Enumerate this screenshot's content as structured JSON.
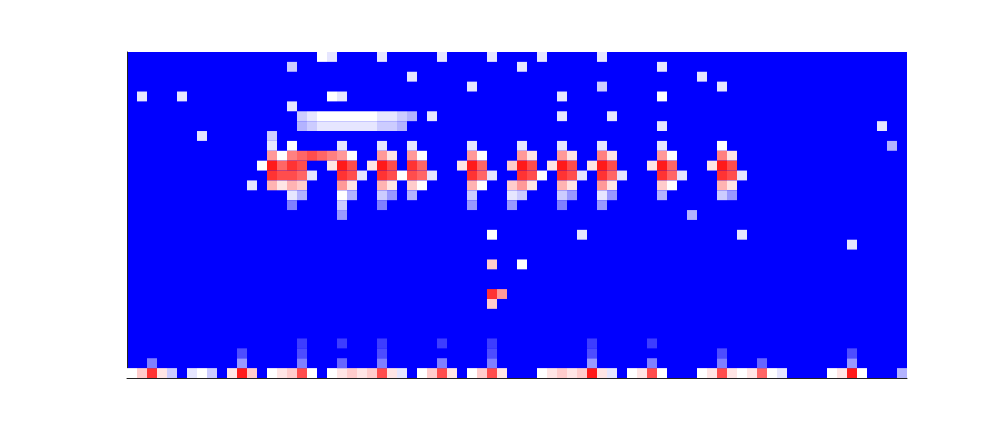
{
  "chart_data": {
    "type": "heatmap",
    "xlim": [
      0,
      78
    ],
    "ylim": [
      0,
      33
    ],
    "tick_labels": false,
    "grid": false,
    "color_range": [
      0,
      1
    ],
    "cells": [
      [
        0,
        0,
        0.5
      ],
      [
        1,
        0,
        0.6
      ],
      [
        2,
        0,
        0.9
      ],
      [
        3,
        0,
        0.55
      ],
      [
        4,
        0,
        0.4
      ],
      [
        6,
        0,
        0.45
      ],
      [
        7,
        0,
        0.5
      ],
      [
        8,
        0,
        0.4
      ],
      [
        10,
        0,
        0.55
      ],
      [
        11,
        0,
        0.95
      ],
      [
        12,
        0,
        0.6
      ],
      [
        14,
        0,
        0.5
      ],
      [
        15,
        0,
        0.55
      ],
      [
        16,
        0,
        0.6
      ],
      [
        17,
        0,
        0.85
      ],
      [
        18,
        0,
        0.5
      ],
      [
        20,
        0,
        0.5
      ],
      [
        21,
        0,
        0.55
      ],
      [
        22,
        0,
        0.6
      ],
      [
        23,
        0,
        0.55
      ],
      [
        24,
        0,
        0.6
      ],
      [
        25,
        0,
        0.85
      ],
      [
        26,
        0,
        0.55
      ],
      [
        27,
        0,
        0.45
      ],
      [
        29,
        0,
        0.5
      ],
      [
        30,
        0,
        0.6
      ],
      [
        31,
        0,
        0.85
      ],
      [
        32,
        0,
        0.55
      ],
      [
        34,
        0,
        0.5
      ],
      [
        35,
        0,
        0.6
      ],
      [
        36,
        0,
        0.85
      ],
      [
        37,
        0,
        0.55
      ],
      [
        41,
        0,
        0.5
      ],
      [
        42,
        0,
        0.55
      ],
      [
        43,
        0,
        0.6
      ],
      [
        44,
        0,
        0.55
      ],
      [
        45,
        0,
        0.6
      ],
      [
        46,
        0,
        0.95
      ],
      [
        47,
        0,
        0.55
      ],
      [
        48,
        0,
        0.45
      ],
      [
        50,
        0,
        0.5
      ],
      [
        51,
        0,
        0.55
      ],
      [
        52,
        0,
        0.85
      ],
      [
        53,
        0,
        0.5
      ],
      [
        57,
        0,
        0.5
      ],
      [
        58,
        0,
        0.55
      ],
      [
        59,
        0,
        0.85
      ],
      [
        60,
        0,
        0.55
      ],
      [
        61,
        0,
        0.5
      ],
      [
        62,
        0,
        0.55
      ],
      [
        63,
        0,
        0.8
      ],
      [
        64,
        0,
        0.5
      ],
      [
        65,
        0,
        0.45
      ],
      [
        70,
        0,
        0.5
      ],
      [
        71,
        0,
        0.55
      ],
      [
        72,
        0,
        0.95
      ],
      [
        73,
        0,
        0.5
      ],
      [
        77,
        0,
        0.35
      ],
      [
        2,
        1,
        0.25
      ],
      [
        11,
        1,
        0.3
      ],
      [
        17,
        1,
        0.25
      ],
      [
        21,
        1,
        0.2
      ],
      [
        25,
        1,
        0.25
      ],
      [
        31,
        1,
        0.25
      ],
      [
        36,
        1,
        0.25
      ],
      [
        46,
        1,
        0.3
      ],
      [
        52,
        1,
        0.25
      ],
      [
        59,
        1,
        0.25
      ],
      [
        63,
        1,
        0.2
      ],
      [
        72,
        1,
        0.3
      ],
      [
        11,
        2,
        0.15
      ],
      [
        17,
        2,
        0.15
      ],
      [
        25,
        2,
        0.15
      ],
      [
        36,
        2,
        0.15
      ],
      [
        46,
        2,
        0.15
      ],
      [
        59,
        2,
        0.15
      ],
      [
        72,
        2,
        0.15
      ],
      [
        17,
        3,
        0.12
      ],
      [
        21,
        3,
        0.12
      ],
      [
        25,
        3,
        0.12
      ],
      [
        31,
        3,
        0.12
      ],
      [
        36,
        3,
        0.12
      ],
      [
        46,
        3,
        0.12
      ],
      [
        52,
        3,
        0.12
      ],
      [
        36,
        7,
        0.6
      ],
      [
        36,
        8,
        0.9
      ],
      [
        37,
        8,
        0.7
      ],
      [
        36,
        11,
        0.6
      ],
      [
        39,
        11,
        0.5
      ],
      [
        36,
        14,
        0.5
      ],
      [
        45,
        14,
        0.45
      ],
      [
        61,
        14,
        0.45
      ],
      [
        72,
        13,
        0.45
      ],
      [
        56,
        16,
        0.35
      ],
      [
        75,
        25,
        0.45
      ],
      [
        76,
        23,
        0.35
      ],
      [
        12,
        19,
        0.45
      ],
      [
        13,
        21,
        0.5
      ],
      [
        7,
        24,
        0.45
      ],
      [
        14,
        23,
        0.45
      ],
      [
        14,
        22,
        0.7
      ],
      [
        15,
        22,
        0.5
      ],
      [
        14,
        21,
        0.95
      ],
      [
        15,
        21,
        0.8
      ],
      [
        14,
        20,
        0.9
      ],
      [
        15,
        20,
        0.85
      ],
      [
        14,
        19,
        0.65
      ],
      [
        15,
        19,
        0.55
      ],
      [
        14,
        24,
        0.4
      ],
      [
        16,
        23,
        0.5
      ],
      [
        16,
        22,
        0.75
      ],
      [
        17,
        22,
        0.8
      ],
      [
        16,
        21,
        0.9
      ],
      [
        17,
        21,
        0.85
      ],
      [
        16,
        20,
        0.85
      ],
      [
        17,
        20,
        0.8
      ],
      [
        18,
        20,
        0.45
      ],
      [
        16,
        19,
        0.65
      ],
      [
        17,
        19,
        0.6
      ],
      [
        16,
        18,
        0.45
      ],
      [
        17,
        18,
        0.35
      ],
      [
        16,
        17,
        0.25
      ],
      [
        18,
        22,
        0.85
      ],
      [
        19,
        22,
        0.8
      ],
      [
        20,
        22,
        0.75
      ],
      [
        21,
        23,
        0.45
      ],
      [
        21,
        22,
        0.7
      ],
      [
        22,
        22,
        0.5
      ],
      [
        20,
        21,
        0.55
      ],
      [
        21,
        21,
        0.95
      ],
      [
        22,
        21,
        0.85
      ],
      [
        21,
        20,
        0.9
      ],
      [
        22,
        20,
        0.85
      ],
      [
        23,
        20,
        0.45
      ],
      [
        21,
        19,
        0.7
      ],
      [
        22,
        19,
        0.55
      ],
      [
        21,
        18,
        0.5
      ],
      [
        22,
        18,
        0.35
      ],
      [
        21,
        17,
        0.4
      ],
      [
        21,
        16,
        0.3
      ],
      [
        25,
        23,
        0.45
      ],
      [
        25,
        22,
        0.7
      ],
      [
        26,
        22,
        0.55
      ],
      [
        24,
        21,
        0.55
      ],
      [
        25,
        21,
        0.95
      ],
      [
        26,
        21,
        0.85
      ],
      [
        25,
        20,
        0.9
      ],
      [
        26,
        20,
        0.85
      ],
      [
        27,
        20,
        0.5
      ],
      [
        25,
        19,
        0.65
      ],
      [
        26,
        19,
        0.55
      ],
      [
        25,
        18,
        0.4
      ],
      [
        26,
        18,
        0.3
      ],
      [
        25,
        17,
        0.25
      ],
      [
        28,
        23,
        0.45
      ],
      [
        28,
        22,
        0.7
      ],
      [
        29,
        22,
        0.5
      ],
      [
        28,
        21,
        0.9
      ],
      [
        29,
        21,
        0.8
      ],
      [
        28,
        20,
        0.85
      ],
      [
        29,
        20,
        0.8
      ],
      [
        30,
        20,
        0.45
      ],
      [
        28,
        19,
        0.6
      ],
      [
        29,
        19,
        0.5
      ],
      [
        28,
        18,
        0.35
      ],
      [
        34,
        23,
        0.45
      ],
      [
        34,
        22,
        0.7
      ],
      [
        35,
        22,
        0.5
      ],
      [
        33,
        21,
        0.55
      ],
      [
        34,
        21,
        0.95
      ],
      [
        35,
        21,
        0.8
      ],
      [
        34,
        20,
        0.9
      ],
      [
        35,
        20,
        0.8
      ],
      [
        36,
        20,
        0.45
      ],
      [
        34,
        19,
        0.65
      ],
      [
        35,
        19,
        0.5
      ],
      [
        34,
        18,
        0.4
      ],
      [
        34,
        17,
        0.3
      ],
      [
        39,
        23,
        0.45
      ],
      [
        39,
        22,
        0.7
      ],
      [
        40,
        22,
        0.55
      ],
      [
        38,
        21,
        0.6
      ],
      [
        39,
        21,
        0.95
      ],
      [
        40,
        21,
        0.85
      ],
      [
        39,
        20,
        0.9
      ],
      [
        40,
        20,
        0.85
      ],
      [
        41,
        20,
        0.5
      ],
      [
        38,
        19,
        0.6
      ],
      [
        39,
        19,
        0.7
      ],
      [
        40,
        19,
        0.55
      ],
      [
        38,
        18,
        0.45
      ],
      [
        39,
        18,
        0.4
      ],
      [
        38,
        17,
        0.3
      ],
      [
        43,
        23,
        0.45
      ],
      [
        43,
        22,
        0.7
      ],
      [
        44,
        22,
        0.55
      ],
      [
        42,
        21,
        0.55
      ],
      [
        43,
        21,
        0.95
      ],
      [
        44,
        21,
        0.85
      ],
      [
        43,
        20,
        0.9
      ],
      [
        44,
        20,
        0.85
      ],
      [
        45,
        20,
        0.45
      ],
      [
        43,
        19,
        0.65
      ],
      [
        44,
        19,
        0.55
      ],
      [
        43,
        18,
        0.4
      ],
      [
        44,
        18,
        0.3
      ],
      [
        43,
        17,
        0.25
      ],
      [
        47,
        23,
        0.45
      ],
      [
        47,
        22,
        0.75
      ],
      [
        48,
        22,
        0.55
      ],
      [
        46,
        21,
        0.55
      ],
      [
        47,
        21,
        0.95
      ],
      [
        48,
        21,
        0.85
      ],
      [
        47,
        20,
        0.9
      ],
      [
        48,
        20,
        0.8
      ],
      [
        49,
        20,
        0.45
      ],
      [
        47,
        19,
        0.7
      ],
      [
        48,
        19,
        0.55
      ],
      [
        47,
        18,
        0.45
      ],
      [
        48,
        18,
        0.3
      ],
      [
        47,
        17,
        0.3
      ],
      [
        53,
        23,
        0.45
      ],
      [
        53,
        22,
        0.7
      ],
      [
        54,
        22,
        0.5
      ],
      [
        52,
        21,
        0.55
      ],
      [
        53,
        21,
        0.95
      ],
      [
        54,
        21,
        0.8
      ],
      [
        53,
        20,
        0.9
      ],
      [
        54,
        20,
        0.8
      ],
      [
        55,
        20,
        0.45
      ],
      [
        53,
        19,
        0.6
      ],
      [
        54,
        19,
        0.5
      ],
      [
        53,
        18,
        0.35
      ],
      [
        59,
        23,
        0.5
      ],
      [
        59,
        22,
        0.75
      ],
      [
        60,
        22,
        0.55
      ],
      [
        58,
        21,
        0.55
      ],
      [
        59,
        21,
        0.95
      ],
      [
        60,
        21,
        0.85
      ],
      [
        59,
        20,
        0.9
      ],
      [
        60,
        20,
        0.85
      ],
      [
        61,
        20,
        0.45
      ],
      [
        59,
        19,
        0.65
      ],
      [
        60,
        19,
        0.55
      ],
      [
        59,
        18,
        0.4
      ],
      [
        60,
        18,
        0.3
      ],
      [
        17,
        26,
        0.4
      ],
      [
        18,
        26,
        0.45
      ],
      [
        19,
        26,
        0.5
      ],
      [
        20,
        26,
        0.5
      ],
      [
        21,
        26,
        0.5
      ],
      [
        22,
        26,
        0.5
      ],
      [
        23,
        26,
        0.5
      ],
      [
        24,
        26,
        0.5
      ],
      [
        25,
        26,
        0.45
      ],
      [
        26,
        26,
        0.45
      ],
      [
        27,
        26,
        0.4
      ],
      [
        28,
        26,
        0.35
      ],
      [
        17,
        25,
        0.35
      ],
      [
        18,
        25,
        0.4
      ],
      [
        19,
        25,
        0.45
      ],
      [
        20,
        25,
        0.45
      ],
      [
        21,
        25,
        0.45
      ],
      [
        22,
        25,
        0.45
      ],
      [
        23,
        25,
        0.45
      ],
      [
        24,
        25,
        0.45
      ],
      [
        25,
        25,
        0.4
      ],
      [
        26,
        25,
        0.4
      ],
      [
        27,
        25,
        0.35
      ],
      [
        30,
        26,
        0.45
      ],
      [
        43,
        26,
        0.45
      ],
      [
        48,
        26,
        0.45
      ],
      [
        53,
        25,
        0.45
      ],
      [
        1,
        28,
        0.45
      ],
      [
        5,
        28,
        0.45
      ],
      [
        16,
        27,
        0.45
      ],
      [
        20,
        28,
        0.5
      ],
      [
        21,
        28,
        0.45
      ],
      [
        43,
        28,
        0.45
      ],
      [
        53,
        28,
        0.5
      ],
      [
        34,
        29,
        0.45
      ],
      [
        47,
        29,
        0.4
      ],
      [
        59,
        29,
        0.45
      ],
      [
        28,
        30,
        0.45
      ],
      [
        57,
        30,
        0.45
      ],
      [
        16,
        31,
        0.4
      ],
      [
        39,
        31,
        0.45
      ],
      [
        53,
        31,
        0.45
      ],
      [
        19,
        32,
        0.5
      ],
      [
        20,
        32,
        0.45
      ],
      [
        25,
        32,
        0.45
      ],
      [
        31,
        32,
        0.45
      ],
      [
        36,
        32,
        0.45
      ],
      [
        41,
        32,
        0.45
      ],
      [
        47,
        32,
        0.45
      ]
    ]
  }
}
